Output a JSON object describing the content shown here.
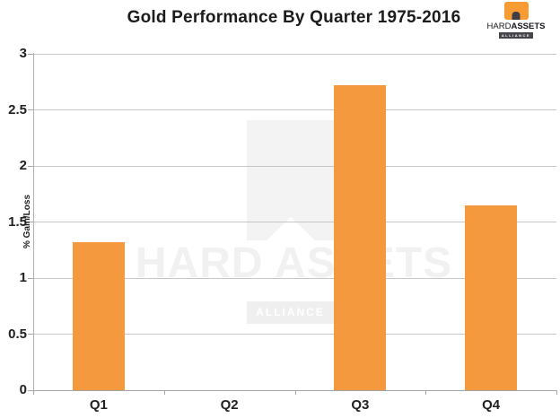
{
  "title": "Gold Performance By Quarter 1975-2016",
  "logo": {
    "hard": "HARD",
    "assets": "ASSETS",
    "alliance": "ALLIANCE"
  },
  "watermark": {
    "brand": "HARD ASSETS",
    "alliance": "ALLIANCE"
  },
  "colors": {
    "bar": "#F5993E",
    "logo_orange": "#F79B33",
    "logo_dark": "#45454B",
    "gridline": "#C6C6C6",
    "axis": "#A5A5A5",
    "watermark_gray": "#F3F3F3"
  },
  "chart_data": {
    "type": "bar",
    "title": "Gold Performance By Quarter 1975-2016",
    "categories": [
      "Q1",
      "Q2",
      "Q3",
      "Q4"
    ],
    "values": [
      1.32,
      0,
      2.72,
      1.65
    ],
    "xlabel": "",
    "ylabel": "% Gain/Loss",
    "ylim": [
      0,
      3
    ],
    "yticks": [
      0,
      0.5,
      1,
      1.5,
      2,
      2.5,
      3
    ],
    "grid": true,
    "legend": false,
    "bar_color": "#F5993E"
  }
}
